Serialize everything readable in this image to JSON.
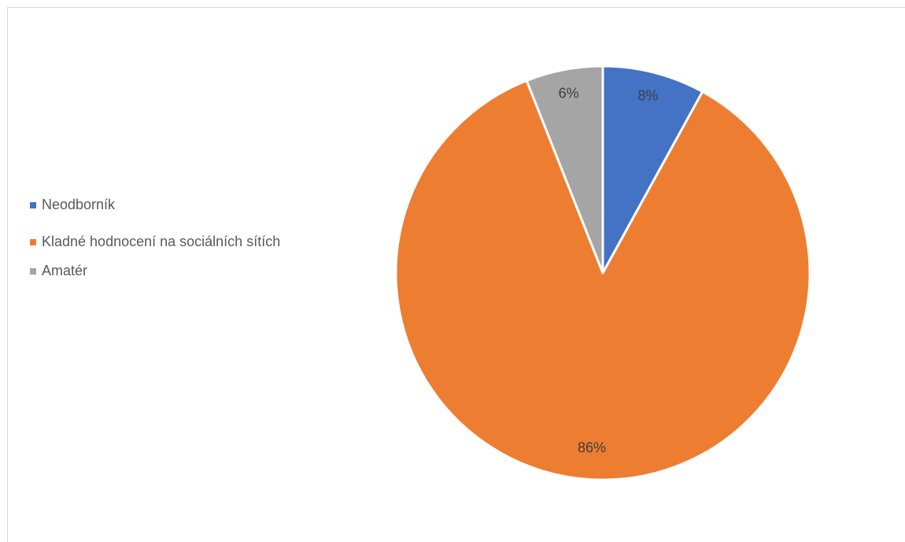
{
  "chart_data": {
    "type": "pie",
    "title": "",
    "start_angle_deg": 0,
    "direction": "clockwise",
    "legend_position": "left",
    "slices": [
      {
        "label": "Neodborník",
        "value": 8,
        "display": "8%",
        "color": "#4472C4"
      },
      {
        "label": "Kladné hodnocení na sociálních sítích",
        "value": 86,
        "display": "86%",
        "color": "#ED7D31"
      },
      {
        "label": "Amatér",
        "value": 6,
        "display": "6%",
        "color": "#A5A5A5"
      }
    ]
  }
}
